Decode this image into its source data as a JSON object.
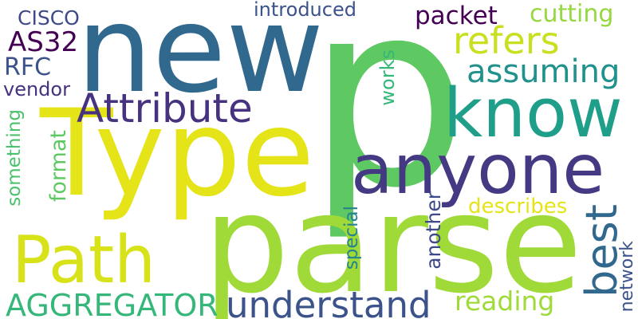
{
  "palette": {
    "background": "#ffffff",
    "green": "#5ec962",
    "light_green": "#a0da39",
    "yellow": "#e4e419",
    "yellow_green": "#c8e020",
    "navy": "#31688e",
    "dark_blue": "#3b528b",
    "indigo": "#443983",
    "purple": "#46327e",
    "dark_purple": "#440154",
    "teal": "#26828e",
    "teal_green": "#1f9e89",
    "sea_green": "#35b779",
    "mint": "#4ac16d"
  },
  "words": [
    {
      "text": "p",
      "color": "#5ec962"
    },
    {
      "text": "new",
      "color": "#31688e"
    },
    {
      "text": "Type",
      "color": "#e4e419"
    },
    {
      "text": "parse",
      "color": "#a0da39"
    },
    {
      "text": "know",
      "color": "#1f9e89"
    },
    {
      "text": "anyone",
      "color": "#443983"
    },
    {
      "text": "Path",
      "color": "#d8e219"
    },
    {
      "text": "Attribute",
      "color": "#46327e"
    },
    {
      "text": "refers",
      "color": "#c8e020"
    },
    {
      "text": "assuming",
      "color": "#21918c"
    },
    {
      "text": "understand",
      "color": "#3b528b"
    },
    {
      "text": "AGGREGATOR",
      "color": "#35b779"
    },
    {
      "text": "best",
      "color": "#31688e"
    },
    {
      "text": "cutting",
      "color": "#95d840"
    },
    {
      "text": "packet",
      "color": "#440154"
    },
    {
      "text": "introduced",
      "color": "#3b528b"
    },
    {
      "text": "CISCO",
      "color": "#3e4989"
    },
    {
      "text": "AS32",
      "color": "#440154"
    },
    {
      "text": "RFC",
      "color": "#3b528b"
    },
    {
      "text": "vendor",
      "color": "#46327e"
    },
    {
      "text": "something",
      "color": "#4ac16d"
    },
    {
      "text": "format",
      "color": "#5ec962"
    },
    {
      "text": "works",
      "color": "#35b779"
    },
    {
      "text": "reading",
      "color": "#a0da39"
    },
    {
      "text": "describes",
      "color": "#e4e419"
    },
    {
      "text": "another",
      "color": "#3e4989"
    },
    {
      "text": "special",
      "color": "#26828e"
    },
    {
      "text": "network",
      "color": "#3b528b"
    }
  ]
}
